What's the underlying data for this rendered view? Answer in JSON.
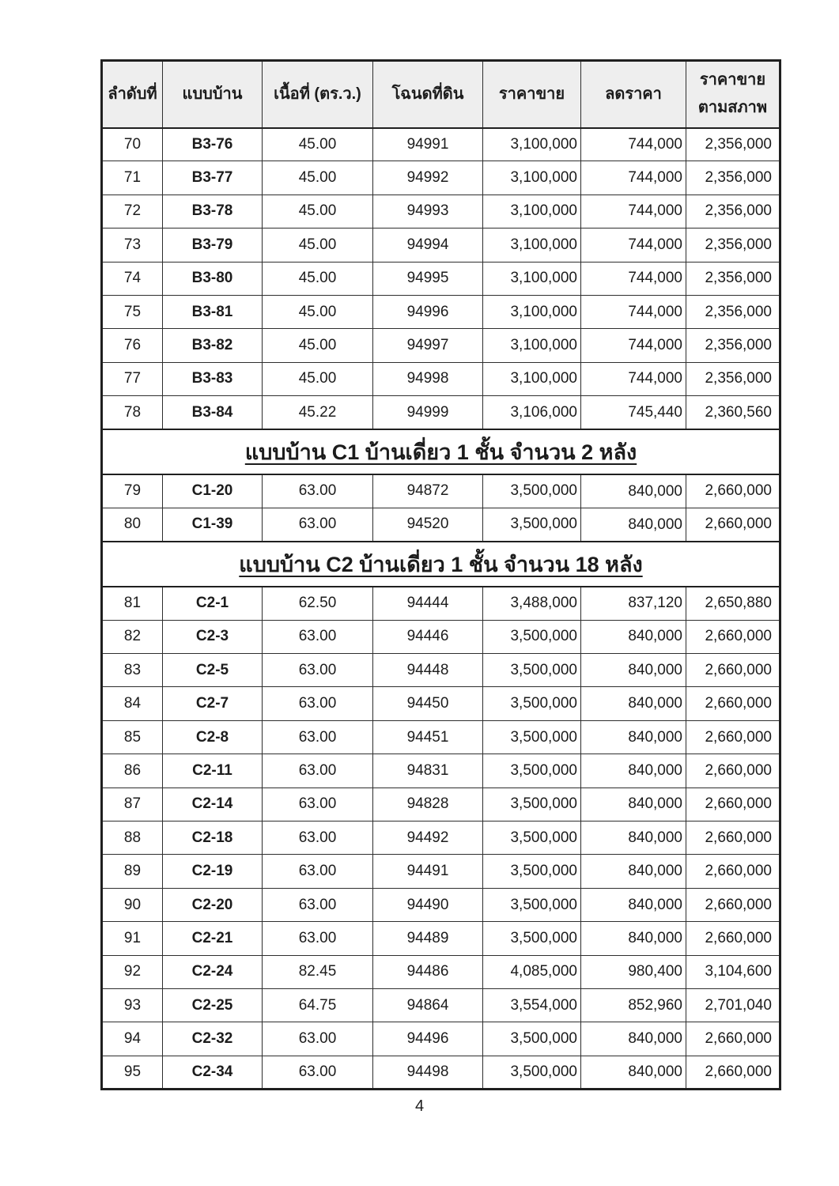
{
  "page": {
    "number": "4"
  },
  "colors": {
    "header_bg": "#eeeeee",
    "border": "#1f1f1f",
    "text": "#1c1c1c",
    "page_bg": "#ffffff"
  },
  "table": {
    "column_keys": [
      "index",
      "model",
      "area",
      "deed",
      "price",
      "discount",
      "net-price"
    ],
    "columns": [
      [
        "ลำดับที่"
      ],
      [
        "แบบบ้าน"
      ],
      [
        "เนื้อที่ (ตร.ว.)"
      ],
      [
        "โฉนดที่ดิน"
      ],
      [
        "ราคาขาย"
      ],
      [
        "ลดราคา"
      ],
      [
        "ราคาขาย",
        "ตามสภาพ"
      ]
    ],
    "groups": [
      {
        "section": null,
        "rows": [
          [
            "70",
            "B3-76",
            "45.00",
            "94991",
            "3,100,000",
            "744,000",
            "2,356,000"
          ],
          [
            "71",
            "B3-77",
            "45.00",
            "94992",
            "3,100,000",
            "744,000",
            "2,356,000"
          ],
          [
            "72",
            "B3-78",
            "45.00",
            "94993",
            "3,100,000",
            "744,000",
            "2,356,000"
          ],
          [
            "73",
            "B3-79",
            "45.00",
            "94994",
            "3,100,000",
            "744,000",
            "2,356,000"
          ],
          [
            "74",
            "B3-80",
            "45.00",
            "94995",
            "3,100,000",
            "744,000",
            "2,356,000"
          ],
          [
            "75",
            "B3-81",
            "45.00",
            "94996",
            "3,100,000",
            "744,000",
            "2,356,000"
          ],
          [
            "76",
            "B3-82",
            "45.00",
            "94997",
            "3,100,000",
            "744,000",
            "2,356,000"
          ],
          [
            "77",
            "B3-83",
            "45.00",
            "94998",
            "3,100,000",
            "744,000",
            "2,356,000"
          ],
          [
            "78",
            "B3-84",
            "45.22",
            "94999",
            "3,106,000",
            "745,440",
            "2,360,560"
          ]
        ]
      },
      {
        "section": "แบบบ้าน C1 บ้านเดี่ยว 1 ชั้น จำนวน 2 หลัง",
        "discount_top": true,
        "rows": [
          [
            "79",
            "C1-20",
            "63.00",
            "94872",
            "3,500,000",
            "840,000",
            "2,660,000"
          ],
          [
            "80",
            "C1-39",
            "63.00",
            "94520",
            "3,500,000",
            "840,000",
            "2,660,000"
          ]
        ]
      },
      {
        "section": "แบบบ้าน C2 บ้านเดี่ยว 1 ชั้น จำนวน 18 หลัง",
        "rows": [
          [
            "81",
            "C2-1",
            "62.50",
            "94444",
            "3,488,000",
            "837,120",
            "2,650,880"
          ],
          [
            "82",
            "C2-3",
            "63.00",
            "94446",
            "3,500,000",
            "840,000",
            "2,660,000"
          ],
          [
            "83",
            "C2-5",
            "63.00",
            "94448",
            "3,500,000",
            "840,000",
            "2,660,000"
          ],
          [
            "84",
            "C2-7",
            "63.00",
            "94450",
            "3,500,000",
            "840,000",
            "2,660,000"
          ],
          [
            "85",
            "C2-8",
            "63.00",
            "94451",
            "3,500,000",
            "840,000",
            "2,660,000"
          ],
          [
            "86",
            "C2-11",
            "63.00",
            "94831",
            "3,500,000",
            "840,000",
            "2,660,000"
          ],
          [
            "87",
            "C2-14",
            "63.00",
            "94828",
            "3,500,000",
            "840,000",
            "2,660,000"
          ],
          [
            "88",
            "C2-18",
            "63.00",
            "94492",
            "3,500,000",
            "840,000",
            "2,660,000"
          ],
          [
            "89",
            "C2-19",
            "63.00",
            "94491",
            "3,500,000",
            "840,000",
            "2,660,000"
          ],
          [
            "90",
            "C2-20",
            "63.00",
            "94490",
            "3,500,000",
            "840,000",
            "2,660,000"
          ],
          [
            "91",
            "C2-21",
            "63.00",
            "94489",
            "3,500,000",
            "840,000",
            "2,660,000"
          ],
          [
            "92",
            "C2-24",
            "82.45",
            "94486",
            "4,085,000",
            "980,400",
            "3,104,600"
          ],
          [
            "93",
            "C2-25",
            "64.75",
            "94864",
            "3,554,000",
            "852,960",
            "2,701,040"
          ],
          [
            "94",
            "C2-32",
            "63.00",
            "94496",
            "3,500,000",
            "840,000",
            "2,660,000"
          ],
          [
            "95",
            "C2-34",
            "63.00",
            "94498",
            "3,500,000",
            "840,000",
            "2,660,000"
          ]
        ]
      }
    ]
  }
}
